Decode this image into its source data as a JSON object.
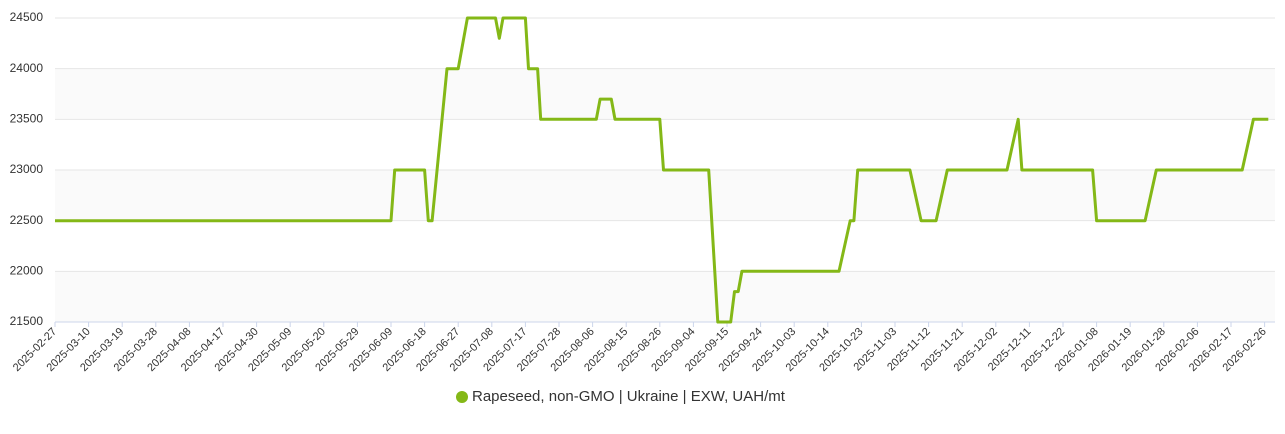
{
  "chart_data": {
    "type": "line",
    "x": [
      "2025-02-27",
      "2025-06-09",
      "2025-06-10",
      "2025-06-18",
      "2025-06-19",
      "2025-06-20",
      "2025-06-24",
      "2025-06-27",
      "2025-06-30",
      "2025-07-09",
      "2025-07-10",
      "2025-07-11",
      "2025-07-17",
      "2025-07-18",
      "2025-07-21",
      "2025-07-22",
      "2025-08-07",
      "2025-08-08",
      "2025-08-11",
      "2025-08-12",
      "2025-08-26",
      "2025-08-27",
      "2025-09-09",
      "2025-09-12",
      "2025-09-16",
      "2025-09-17",
      "2025-09-18",
      "2025-09-19",
      "2025-10-17",
      "2025-10-20",
      "2025-10-21",
      "2025-10-22",
      "2025-11-07",
      "2025-11-10",
      "2025-11-14",
      "2025-11-17",
      "2025-12-05",
      "2025-12-08",
      "2025-12-09",
      "2026-01-06",
      "2026-01-08",
      "2026-01-23",
      "2026-01-26",
      "2026-02-20",
      "2026-02-23",
      "2026-02-27"
    ],
    "series": [
      {
        "name": "Rapeseed, non-GMO | Ukraine | EXW, UAH/mt",
        "color": "#84b817",
        "values": [
          22500,
          22500,
          23000,
          23000,
          22500,
          22500,
          24000,
          24000,
          24500,
          24500,
          24300,
          24500,
          24500,
          24000,
          24000,
          23500,
          23500,
          23700,
          23700,
          23500,
          23500,
          23000,
          23000,
          21500,
          21500,
          21800,
          21800,
          22000,
          22000,
          22500,
          22500,
          23000,
          23000,
          22500,
          22500,
          23000,
          23000,
          23500,
          23000,
          23000,
          22500,
          22500,
          23000,
          23000,
          23500,
          23500
        ]
      }
    ],
    "xticks": [
      "2025-02-27",
      "2025-03-10",
      "2025-03-19",
      "2025-03-28",
      "2025-04-08",
      "2025-04-17",
      "2025-04-30",
      "2025-05-09",
      "2025-05-20",
      "2025-05-29",
      "2025-06-09",
      "2025-06-18",
      "2025-06-27",
      "2025-07-08",
      "2025-07-17",
      "2025-07-28",
      "2025-08-06",
      "2025-08-15",
      "2025-08-26",
      "2025-09-04",
      "2025-09-15",
      "2025-09-24",
      "2025-10-03",
      "2025-10-14",
      "2025-10-23",
      "2025-11-03",
      "2025-11-12",
      "2025-11-21",
      "2025-12-02",
      "2025-12-11",
      "2025-12-22",
      "2026-01-08",
      "2026-01-19",
      "2026-01-28",
      "2026-02-06",
      "2026-02-17",
      "2026-02-26"
    ],
    "ylim": [
      21500,
      24500
    ],
    "yticks": [
      21500,
      22000,
      22500,
      23000,
      23500,
      24000,
      24500
    ],
    "grid": true,
    "legend": "bottom"
  }
}
